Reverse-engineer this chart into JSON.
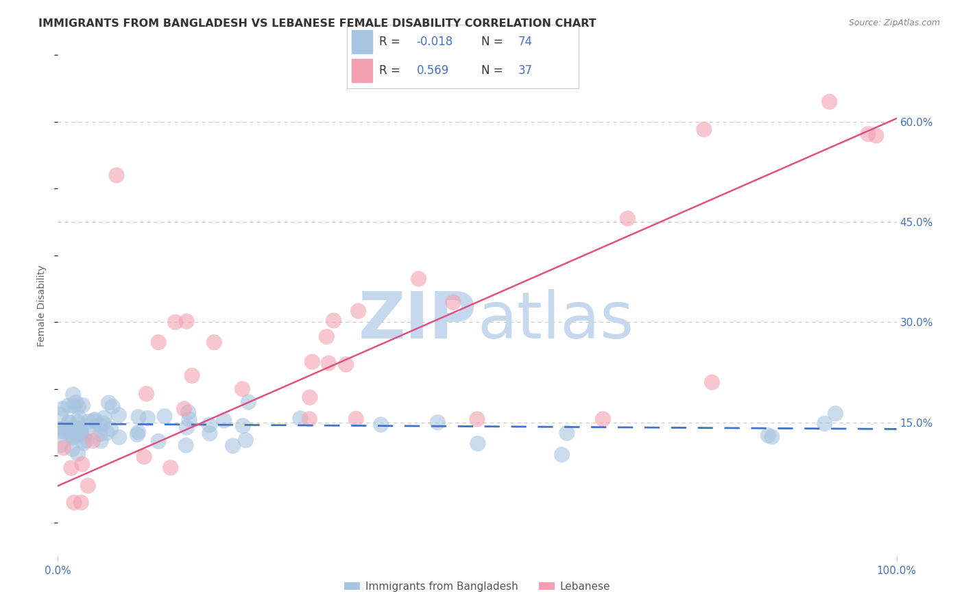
{
  "title": "IMMIGRANTS FROM BANGLADESH VS LEBANESE FEMALE DISABILITY CORRELATION CHART",
  "source": "Source: ZipAtlas.com",
  "ylabel_label": "Female Disability",
  "ytick_labels": [
    "15.0%",
    "30.0%",
    "45.0%",
    "60.0%"
  ],
  "ytick_values": [
    0.15,
    0.3,
    0.45,
    0.6
  ],
  "xlim": [
    0.0,
    1.0
  ],
  "ylim": [
    -0.05,
    0.7
  ],
  "series1_label": "Immigrants from Bangladesh",
  "series2_label": "Lebanese",
  "color1": "#a8c4e0",
  "color2": "#f4a0b0",
  "line1_color": "#4472c4",
  "line2_color": "#e05080",
  "title_color": "#333333",
  "axis_label_color": "#666666",
  "tick_color": "#4472c4",
  "watermark_zip": "ZIP",
  "watermark_atlas": "atlas",
  "watermark_color": "#dce8f5",
  "background_color": "#ffffff",
  "grid_color": "#cccccc",
  "legend_value_color": "#4472c4",
  "legend_r1_label": "R = ",
  "legend_r1_val": "-0.018",
  "legend_n1_label": "N = ",
  "legend_n1_val": "74",
  "legend_r2_label": "R =  ",
  "legend_r2_val": "0.569",
  "legend_n2_label": "N = ",
  "legend_n2_val": "37",
  "line1_start_y": 0.148,
  "line1_end_y": 0.14,
  "line2_start_y": 0.055,
  "line2_end_y": 0.605
}
